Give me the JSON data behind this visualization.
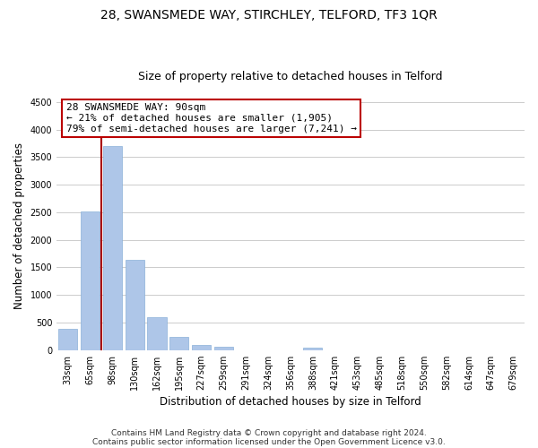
{
  "title": "28, SWANSMEDE WAY, STIRCHLEY, TELFORD, TF3 1QR",
  "subtitle": "Size of property relative to detached houses in Telford",
  "xlabel": "Distribution of detached houses by size in Telford",
  "ylabel": "Number of detached properties",
  "categories": [
    "33sqm",
    "65sqm",
    "98sqm",
    "130sqm",
    "162sqm",
    "195sqm",
    "227sqm",
    "259sqm",
    "291sqm",
    "324sqm",
    "356sqm",
    "388sqm",
    "421sqm",
    "453sqm",
    "485sqm",
    "518sqm",
    "550sqm",
    "582sqm",
    "614sqm",
    "647sqm",
    "679sqm"
  ],
  "values": [
    380,
    2520,
    3700,
    1630,
    600,
    240,
    100,
    55,
    0,
    0,
    0,
    45,
    0,
    0,
    0,
    0,
    0,
    0,
    0,
    0,
    0
  ],
  "bar_color": "#aec6e8",
  "bar_edge_color": "#8ab0d8",
  "highlight_line_color": "#aa0000",
  "annotation_line1": "28 SWANSMEDE WAY: 90sqm",
  "annotation_line2": "← 21% of detached houses are smaller (1,905)",
  "annotation_line3": "79% of semi-detached houses are larger (7,241) →",
  "annotation_box_color": "#ffffff",
  "annotation_box_edge": "#bb0000",
  "ylim": [
    0,
    4500
  ],
  "yticks": [
    0,
    500,
    1000,
    1500,
    2000,
    2500,
    3000,
    3500,
    4000,
    4500
  ],
  "footnote1": "Contains HM Land Registry data © Crown copyright and database right 2024.",
  "footnote2": "Contains public sector information licensed under the Open Government Licence v3.0.",
  "background_color": "#ffffff",
  "grid_color": "#cccccc",
  "title_fontsize": 10,
  "subtitle_fontsize": 9,
  "label_fontsize": 8.5,
  "tick_fontsize": 7,
  "annotation_fontsize": 8,
  "footnote_fontsize": 6.5
}
